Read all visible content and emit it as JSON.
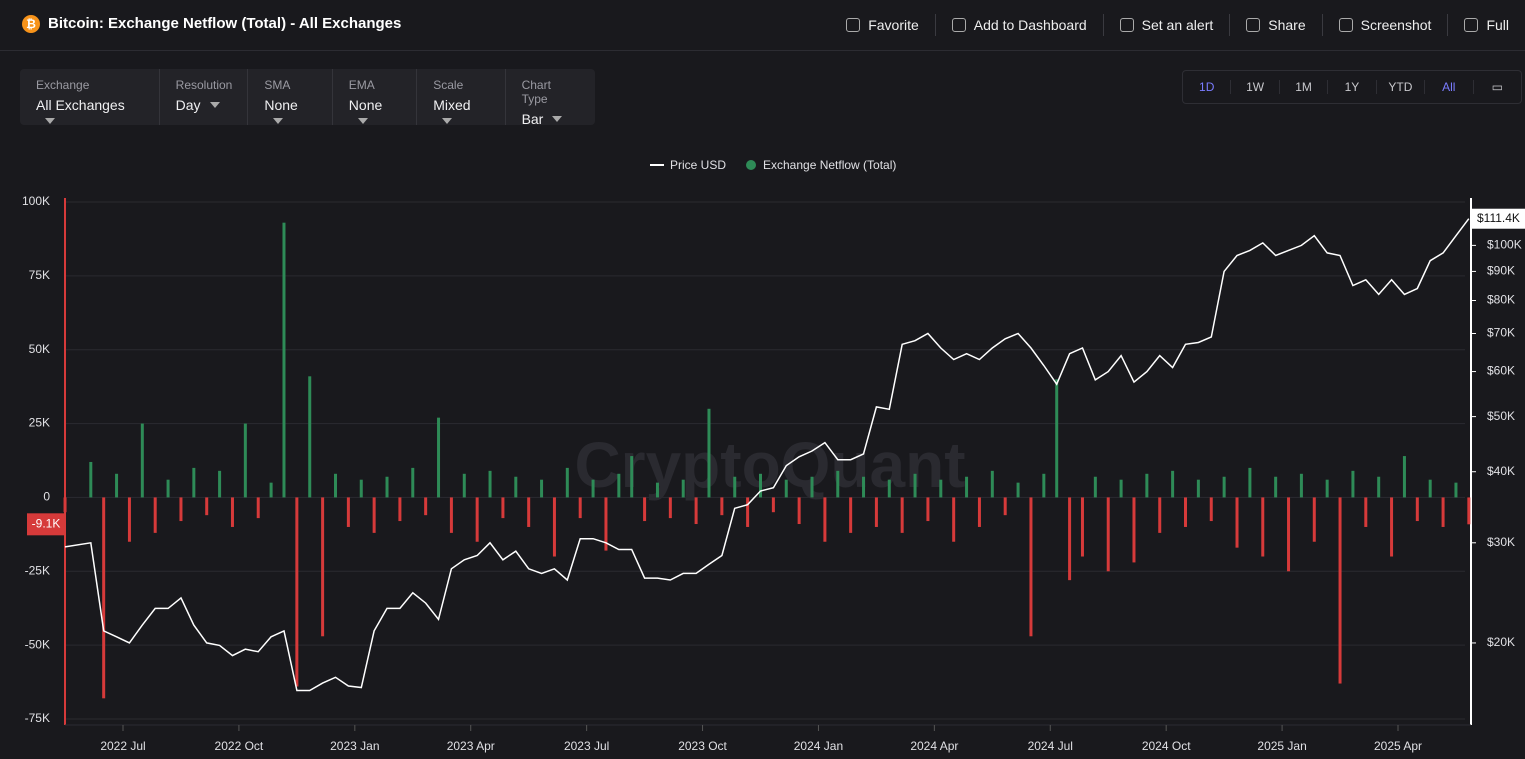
{
  "header": {
    "title": "Bitcoin: Exchange Netflow (Total) - All Exchanges",
    "actions": [
      "Favorite",
      "Add to Dashboard",
      "Set an alert",
      "Share",
      "Screenshot",
      "Full"
    ]
  },
  "filters": [
    {
      "label": "Exchange",
      "value": "All Exchanges"
    },
    {
      "label": "Resolution",
      "value": "Day"
    },
    {
      "label": "SMA",
      "value": "None"
    },
    {
      "label": "EMA",
      "value": "None"
    },
    {
      "label": "Scale",
      "value": "Mixed"
    },
    {
      "label": "Chart Type",
      "value": "Bar"
    }
  ],
  "ranges": [
    "1D",
    "1W",
    "1M",
    "1Y",
    "YTD",
    "All"
  ],
  "chart_data": {
    "type": "combo",
    "watermark": "CryptoQuant",
    "grid": true,
    "x": [
      "2022-05",
      "2022-06",
      "2022-06",
      "2022-06",
      "2022-07",
      "2022-07",
      "2022-07",
      "2022-08",
      "2022-08",
      "2022-08",
      "2022-09",
      "2022-09",
      "2022-09",
      "2022-10",
      "2022-10",
      "2022-10",
      "2022-11",
      "2022-11",
      "2022-11",
      "2022-12",
      "2022-12",
      "2022-12",
      "2023-01",
      "2023-01",
      "2023-01",
      "2023-02",
      "2023-02",
      "2023-02",
      "2023-03",
      "2023-03",
      "2023-03",
      "2023-04",
      "2023-04",
      "2023-04",
      "2023-05",
      "2023-05",
      "2023-05",
      "2023-06",
      "2023-06",
      "2023-06",
      "2023-07",
      "2023-07",
      "2023-07",
      "2023-08",
      "2023-08",
      "2023-08",
      "2023-09",
      "2023-09",
      "2023-09",
      "2023-10",
      "2023-10",
      "2023-10",
      "2023-11",
      "2023-11",
      "2023-11",
      "2023-12",
      "2023-12",
      "2023-12",
      "2024-01",
      "2024-01",
      "2024-01",
      "2024-02",
      "2024-02",
      "2024-02",
      "2024-03",
      "2024-03",
      "2024-03",
      "2024-04",
      "2024-04",
      "2024-04",
      "2024-05",
      "2024-05",
      "2024-05",
      "2024-06",
      "2024-06",
      "2024-06",
      "2024-07",
      "2024-07",
      "2024-07",
      "2024-08",
      "2024-08",
      "2024-08",
      "2024-09",
      "2024-09",
      "2024-09",
      "2024-10",
      "2024-10",
      "2024-10",
      "2024-11",
      "2024-11",
      "2024-11",
      "2024-12",
      "2024-12",
      "2024-12",
      "2025-01",
      "2025-01",
      "2025-01",
      "2025-02",
      "2025-02",
      "2025-02",
      "2025-03",
      "2025-03",
      "2025-03",
      "2025-04",
      "2025-04",
      "2025-04",
      "2025-05",
      "2025-05",
      "2025-05"
    ],
    "series": [
      {
        "name": "Price USD",
        "type": "line",
        "axis": "y2",
        "color": "#ffffff",
        "values": [
          29500,
          30000,
          21000,
          20500,
          20000,
          21500,
          23000,
          23000,
          24000,
          21500,
          20000,
          19800,
          19000,
          19500,
          19300,
          20500,
          21000,
          16500,
          16500,
          17000,
          17400,
          16800,
          16700,
          21000,
          23000,
          23000,
          24500,
          23500,
          22000,
          27000,
          28000,
          28500,
          30000,
          28000,
          29000,
          27000,
          26500,
          27000,
          25800,
          30500,
          30500,
          30000,
          29200,
          29200,
          26000,
          26000,
          25800,
          26500,
          26500,
          27500,
          28500,
          34500,
          35000,
          37000,
          37500,
          41000,
          42500,
          43500,
          45000,
          42000,
          42000,
          43000,
          52000,
          51500,
          67000,
          68000,
          70000,
          66000,
          63000,
          64500,
          63000,
          66000,
          68500,
          70000,
          66000,
          61500,
          57000,
          64500,
          66000,
          58000,
          60000,
          64000,
          57500,
          60000,
          64000,
          61000,
          67000,
          67500,
          69000,
          90000,
          96000,
          98000,
          101000,
          96000,
          98000,
          100000,
          104000,
          97000,
          96000,
          85000,
          87000,
          82000,
          87000,
          82000,
          84000,
          94000,
          97000,
          104000,
          111400
        ]
      },
      {
        "name": "Exchange Netflow (Total)",
        "type": "bar",
        "color": "#2e8b57",
        "color_negative": "#d63a3a",
        "values": [
          -5000,
          12000,
          -68000,
          8000,
          -15000,
          25000,
          -12000,
          6000,
          -8000,
          10000,
          -6000,
          9000,
          -10000,
          25000,
          -7000,
          5000,
          93000,
          -64000,
          41000,
          -47000,
          8000,
          -10000,
          6000,
          -12000,
          7000,
          -8000,
          10000,
          -6000,
          27000,
          -12000,
          8000,
          -15000,
          9000,
          -7000,
          7000,
          -10000,
          6000,
          -20000,
          10000,
          -7000,
          6000,
          -18000,
          8000,
          14000,
          -8000,
          5000,
          -7000,
          6000,
          -9000,
          30000,
          -6000,
          7000,
          -10000,
          8000,
          -5000,
          6000,
          -9000,
          7000,
          -15000,
          9000,
          -12000,
          7000,
          -10000,
          6000,
          -12000,
          8000,
          -8000,
          6000,
          -15000,
          7000,
          -10000,
          9000,
          -6000,
          5000,
          -47000,
          8000,
          40000,
          -28000,
          -20000,
          7000,
          -25000,
          6000,
          -22000,
          8000,
          -12000,
          9000,
          -10000,
          6000,
          -8000,
          7000,
          -17000,
          10000,
          -20000,
          7000,
          -25000,
          8000,
          -15000,
          6000,
          -63000,
          9000,
          -10000,
          7000,
          -20000,
          14000,
          -8000,
          6000,
          -10000,
          5000,
          -9100
        ]
      }
    ],
    "ylim": [
      -75000,
      100000
    ],
    "yticks": [
      {
        "value": 100000,
        "label": "100K"
      },
      {
        "value": 75000,
        "label": "75K"
      },
      {
        "value": 50000,
        "label": "50K"
      },
      {
        "value": 25000,
        "label": "25K"
      },
      0,
      {
        "value": -25000,
        "label": "-25K"
      },
      {
        "value": -50000,
        "label": "-50K"
      },
      {
        "value": -75000,
        "label": "-75K"
      }
    ],
    "y2lim": [
      14700,
      119200
    ],
    "y2log": true,
    "y2ticks": [
      {
        "value": 100000,
        "label": "$100K"
      },
      {
        "value": 90000,
        "label": "$90K"
      },
      {
        "value": 80000,
        "label": "$80K"
      },
      {
        "value": 70000,
        "label": "$70K"
      },
      {
        "value": 60000,
        "label": "$60K"
      },
      {
        "value": 50000,
        "label": "$50K"
      },
      {
        "value": 40000,
        "label": "$40K"
      },
      {
        "value": 30000,
        "label": "$30K"
      },
      {
        "value": 20000,
        "label": "$20K"
      }
    ],
    "xticks": [
      {
        "value": "2022-07",
        "label": "2022 Jul"
      },
      {
        "value": "2022-10",
        "label": "2022 Oct"
      },
      {
        "value": "2023-01",
        "label": "2023 Jan"
      },
      {
        "value": "2023-04",
        "label": "2023 Apr"
      },
      {
        "value": "2023-07",
        "label": "2023 Jul"
      },
      {
        "value": "2023-10",
        "label": "2023 Oct"
      },
      {
        "value": "2024-01",
        "label": "2024 Jan"
      },
      {
        "value": "2024-04",
        "label": "2024 Apr"
      },
      {
        "value": "2024-07",
        "label": "2024 Jul"
      },
      {
        "value": "2024-10",
        "label": "2024 Oct"
      },
      {
        "value": "2025-01",
        "label": "2025 Jan"
      },
      {
        "value": "2025-04",
        "label": "2025 Apr"
      }
    ],
    "last_price_label": "$111.4K",
    "last_netflow_label": "-9.1K"
  }
}
